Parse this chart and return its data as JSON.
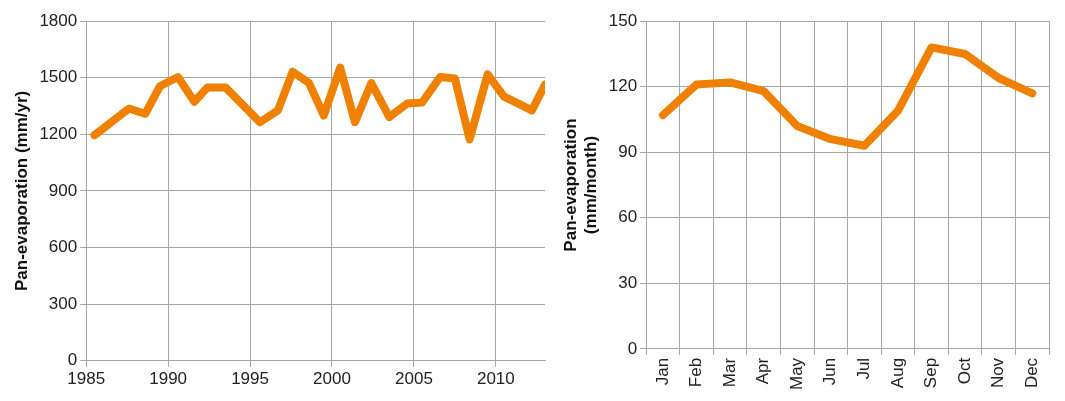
{
  "chart_data": [
    {
      "type": "line",
      "ylabel": "Pan-evaporation (mm/yr)",
      "x": [
        1985.5,
        1987.6,
        1988.6,
        1989.5,
        1990.6,
        1991.6,
        1992.4,
        1993.5,
        1995.6,
        1996.7,
        1997.6,
        1998.6,
        1999.5,
        2000.5,
        2001.4,
        2002.4,
        2003.5,
        2004.6,
        2005.5,
        2006.6,
        2007.5,
        2008.4,
        2009.5,
        2010.5,
        2012.2,
        2013.0
      ],
      "series": [
        {
          "color": "#f08000",
          "values": [
            1195,
            1336,
            1309,
            1455,
            1504,
            1373,
            1449,
            1449,
            1264,
            1327,
            1532,
            1472,
            1300,
            1554,
            1264,
            1472,
            1291,
            1364,
            1369,
            1504,
            1496,
            1173,
            1518,
            1400,
            1327,
            1463
          ]
        }
      ],
      "xlim": [
        1985,
        2013
      ],
      "xticks": [
        1985,
        1990,
        1995,
        2000,
        2005,
        2010
      ],
      "ylim": [
        0,
        1800
      ],
      "yticks": [
        0,
        300,
        600,
        900,
        1200,
        1500,
        1800
      ],
      "grid": true,
      "marker": "none",
      "line_style": "solid"
    },
    {
      "type": "line",
      "ylabel": "Pan-evaporation\n(mm/month)",
      "categories": [
        "Jan",
        "Feb",
        "Mar",
        "Apr",
        "May",
        "Jun",
        "Jul",
        "Aug",
        "Sep",
        "Oct",
        "Nov",
        "Dec"
      ],
      "series": [
        {
          "color": "#f08000",
          "values": [
            107,
            121,
            122,
            118,
            102,
            96,
            93,
            109,
            138,
            135,
            124,
            117
          ]
        }
      ],
      "ylim": [
        0,
        150
      ],
      "yticks": [
        0,
        30,
        60,
        90,
        120,
        150
      ],
      "grid": true,
      "marker": "none",
      "line_style": "solid"
    }
  ]
}
